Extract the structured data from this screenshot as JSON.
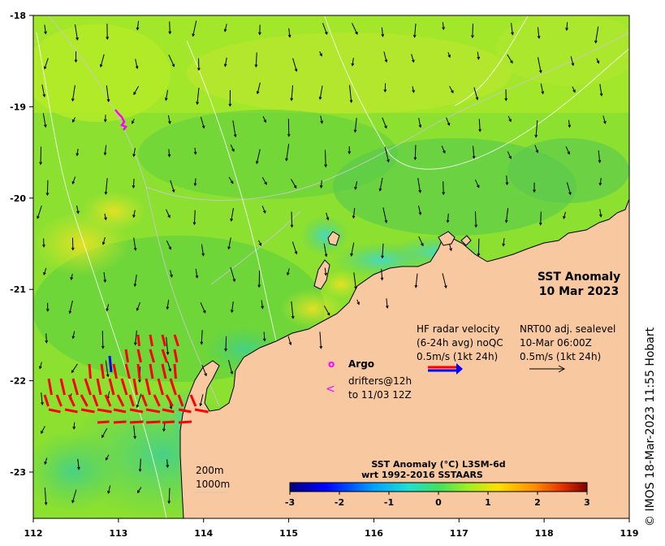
{
  "title": {
    "line1": "SST Anomaly",
    "line2": "10 Mar 2023"
  },
  "credit": "© IMOS 18-Mar-2023 11:55 Hobart",
  "axes": {
    "x_ticks": [
      "112",
      "113",
      "114",
      "115",
      "116",
      "117",
      "118",
      "119"
    ],
    "y_ticks": [
      "-18",
      "-19",
      "-20",
      "-21",
      "-22",
      "-23"
    ]
  },
  "legend": {
    "hf_radar_line1": "HF radar velocity",
    "hf_radar_line2": "(6-24h avg) noQC",
    "hf_radar_line3": "0.5m/s (1kt 24h)",
    "sealevel_line1": "NRT00 adj. sealevel",
    "sealevel_line2": "10-Mar 06:00Z",
    "sealevel_line3": "0.5m/s (1kt 24h)",
    "argo_symbol": "o",
    "argo_label": "Argo",
    "drifter_symbol": "<",
    "drifters_line1": "drifters@12h",
    "drifters_line2": "to 11/03 12Z"
  },
  "contours": {
    "line1": "200m",
    "line2": "1000m"
  },
  "colorbar": {
    "title_line1": "SST Anomaly (°C) L3SM-6d",
    "title_line2": "wrt 1992-2016 SSTAARS",
    "ticks": [
      "-3",
      "-2",
      "-1",
      "0",
      "1",
      "2",
      "3"
    ],
    "range": [
      -3,
      3
    ]
  },
  "colors": {
    "land": "#f8c8a0",
    "hf_radar_arrow": "#ff0000",
    "hf_radar_arrow_inner": "#0000ff",
    "argo": "#ff00ff",
    "drifter": "#ff00ff",
    "sealevel_arrow": "#000000"
  }
}
